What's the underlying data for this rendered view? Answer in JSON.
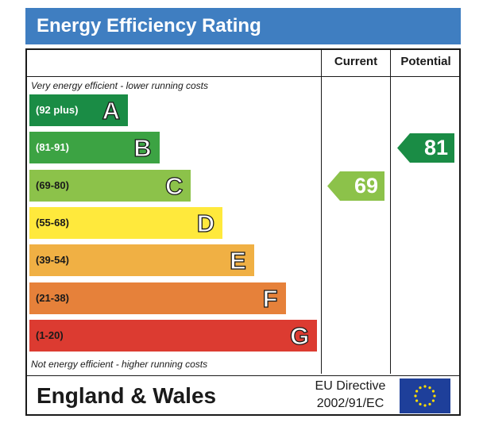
{
  "title": "Energy Efficiency Rating",
  "columns": {
    "current": "Current",
    "potential": "Potential"
  },
  "notes": {
    "top": "Very energy efficient - lower running costs",
    "bottom": "Not energy efficient - higher running costs"
  },
  "footer": {
    "region": "England & Wales",
    "directive_line1": "EU Directive",
    "directive_line2": "2002/91/EC"
  },
  "colors": {
    "title_bar": "#3f7ec1",
    "current_pointer": "#8cc24a",
    "potential_pointer": "#1a8c45",
    "eu_flag": "#1e3f9a"
  },
  "chart_data": {
    "type": "bar",
    "title": "Energy Efficiency Rating",
    "categories": [
      "A",
      "B",
      "C",
      "D",
      "E",
      "F",
      "G"
    ],
    "ranges": [
      "(92 plus)",
      "(81-91)",
      "(69-80)",
      "(55-68)",
      "(39-54)",
      "(21-38)",
      "(1-20)"
    ],
    "band_colors": [
      "#1a8c45",
      "#3ca343",
      "#8cc24a",
      "#ffe93c",
      "#f0b044",
      "#e6813a",
      "#dc3b31"
    ],
    "current": 69,
    "potential": 81
  }
}
